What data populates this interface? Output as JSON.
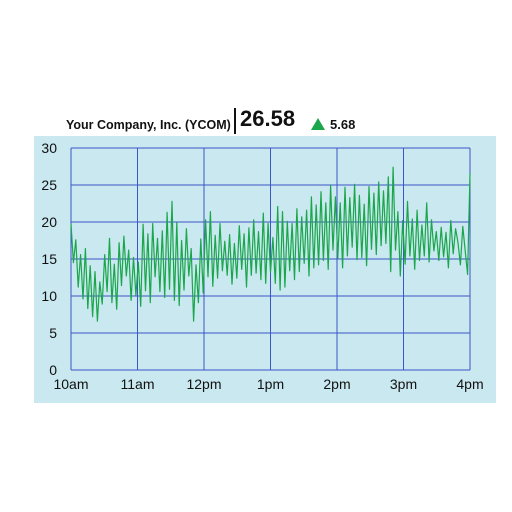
{
  "header": {
    "company": "Your Company, Inc. (YCOM)",
    "price": "26.58",
    "change": "5.68",
    "change_direction": "up"
  },
  "colors": {
    "panel_background": "#c9e8f0",
    "grid": "#3a56c8",
    "line": "#1aa64a",
    "up_arrow": "#1aa64a"
  },
  "chart_data": {
    "type": "line",
    "title": "",
    "xlabel": "",
    "ylabel": "",
    "ylim": [
      0,
      30
    ],
    "yticks": [
      0,
      5,
      10,
      15,
      20,
      25,
      30
    ],
    "xticks": [
      "10am",
      "11am",
      "12pm",
      "1pm",
      "2pm",
      "3pm",
      "4pm"
    ],
    "grid": true,
    "series": [
      {
        "values": [
          19.8,
          14.5,
          17.6,
          11.2,
          15.6,
          9.6,
          16.4,
          8.3,
          14.1,
          7.2,
          13.3,
          6.6,
          11.9,
          8.9,
          15.6,
          10.6,
          17.8,
          9.1,
          14.3,
          8.2,
          17.2,
          11.4,
          18.1,
          12.7,
          16.2,
          9.4,
          15.2,
          10.1,
          14.6,
          8.6,
          19.7,
          10.7,
          18.4,
          9.1,
          19.8,
          12.6,
          17.8,
          10.6,
          18.8,
          9.8,
          21.3,
          10.9,
          22.8,
          9.4,
          19.9,
          8.7,
          17.5,
          10.8,
          19.1,
          12.7,
          16.4,
          6.6,
          14.2,
          9.1,
          17.7,
          10.4,
          20.3,
          12.6,
          21.4,
          11.3,
          18.2,
          12.4,
          19.8,
          13.4,
          17.4,
          12.8,
          18.3,
          11.6,
          17.1,
          12.4,
          19.5,
          13.6,
          18.4,
          11.2,
          19.2,
          12.8,
          20.3,
          13.1,
          18.7,
          12.2,
          21.2,
          11.7,
          19.8,
          13.2,
          17.9,
          11.7,
          22.1,
          10.8,
          21.4,
          11.2,
          20.1,
          13.4,
          19.8,
          12.2,
          21.8,
          13.3,
          20.7,
          14.4,
          21.6,
          12.7,
          23.4,
          13.8,
          22.3,
          14.2,
          24.1,
          14.8,
          22.6,
          13.6,
          24.9,
          16.2,
          23.4,
          15.1,
          22.6,
          13.8,
          24.7,
          15.4,
          23.3,
          16.6,
          25.1,
          14.9,
          23.6,
          15.2,
          22.4,
          14.1,
          24.8,
          16.3,
          23.9,
          15.6,
          25.4,
          16.8,
          24.2,
          17.1,
          26.1,
          13.3,
          27.4,
          16.2,
          21.4,
          12.7,
          20.2,
          14.3,
          22.8,
          15.4,
          20.4,
          13.6,
          21.6,
          14.8,
          19.6,
          15.4,
          22.6,
          14.6,
          20.3,
          16.1,
          18.7,
          14.8,
          19.3,
          15.3,
          18.6,
          13.8,
          20.2,
          15.7,
          19.1,
          17.2,
          14.2,
          19.4,
          16.1,
          12.9,
          26.6
        ]
      }
    ]
  }
}
